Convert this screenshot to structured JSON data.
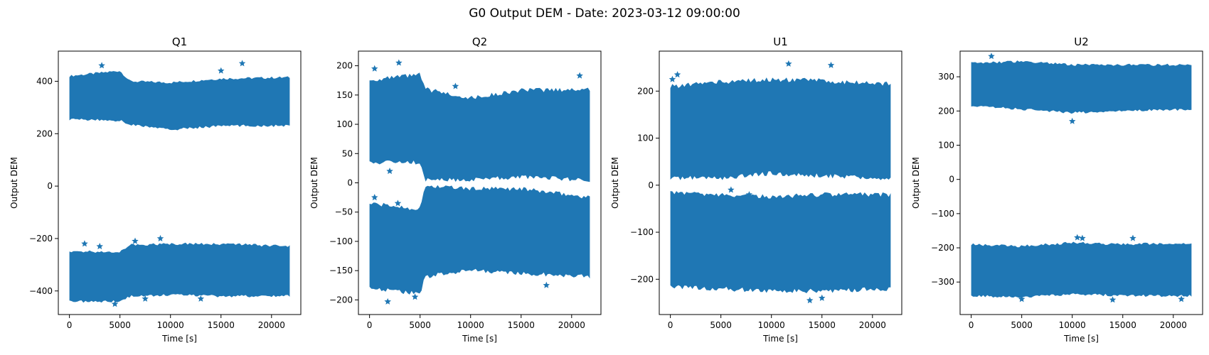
{
  "figure": {
    "suptitle": "G0 Output DEM - Date: 2023-03-12 09:00:00",
    "color": "#1f77b4"
  },
  "chart_data": [
    {
      "type": "scatter",
      "marker": "star",
      "title": "Q1",
      "xlabel": "Time [s]",
      "ylabel": "Output DEM",
      "xlim": [
        -1100,
        22900
      ],
      "ylim": [
        -490,
        515
      ],
      "xticks": [
        0,
        5000,
        10000,
        15000,
        20000
      ],
      "yticks": [
        -400,
        -200,
        0,
        200,
        400
      ],
      "bands": [
        {
          "x": [
            0,
            5000,
            6000,
            10000,
            15000,
            21800
          ],
          "upper": [
            420,
            440,
            400,
            395,
            410,
            415
          ],
          "lower": [
            255,
            250,
            235,
            215,
            230,
            230
          ]
        },
        {
          "x": [
            0,
            5000,
            6000,
            10000,
            15000,
            21800
          ],
          "upper": [
            -250,
            -250,
            -225,
            -220,
            -220,
            -230
          ],
          "lower": [
            -440,
            -440,
            -420,
            -415,
            -420,
            -420
          ]
        }
      ],
      "outliers": [
        [
          17100,
          468
        ],
        [
          3200,
          460
        ],
        [
          15000,
          440
        ],
        [
          9000,
          -200
        ],
        [
          1500,
          -220
        ],
        [
          3000,
          -230
        ],
        [
          6500,
          -210
        ],
        [
          7500,
          -430
        ],
        [
          4500,
          -450
        ],
        [
          13000,
          -430
        ]
      ]
    },
    {
      "type": "scatter",
      "marker": "star",
      "title": "Q2",
      "xlabel": "Time [s]",
      "ylabel": "Output DEM",
      "xlim": [
        -1100,
        22900
      ],
      "ylim": [
        -225,
        225
      ],
      "xticks": [
        0,
        5000,
        10000,
        15000,
        20000
      ],
      "yticks": [
        -200,
        -150,
        -100,
        -50,
        0,
        50,
        100,
        150,
        200
      ],
      "bands": [
        {
          "x": [
            0,
            5000,
            5500,
            10000,
            15000,
            21800
          ],
          "upper": [
            175,
            185,
            160,
            145,
            158,
            160
          ],
          "lower": [
            35,
            35,
            5,
            5,
            10,
            5
          ]
        },
        {
          "x": [
            0,
            5000,
            5500,
            10000,
            15000,
            21800
          ],
          "upper": [
            -35,
            -45,
            -5,
            -10,
            -10,
            -25
          ],
          "lower": [
            -180,
            -190,
            -160,
            -150,
            -155,
            -160
          ]
        }
      ],
      "outliers": [
        [
          2900,
          205
        ],
        [
          500,
          195
        ],
        [
          20800,
          183
        ],
        [
          8500,
          165
        ],
        [
          2000,
          20
        ],
        [
          1800,
          -203
        ],
        [
          500,
          -25
        ],
        [
          2800,
          -35
        ],
        [
          17500,
          -175
        ],
        [
          4500,
          -195
        ]
      ]
    },
    {
      "type": "scatter",
      "marker": "star",
      "title": "U1",
      "xlabel": "Time [s]",
      "ylabel": "Output DEM",
      "xlim": [
        -1100,
        22900
      ],
      "ylim": [
        -275,
        285
      ],
      "xticks": [
        0,
        5000,
        10000,
        15000,
        20000
      ],
      "yticks": [
        -200,
        -100,
        0,
        100,
        200
      ],
      "bands": [
        {
          "x": [
            0,
            5000,
            10000,
            15000,
            21800
          ],
          "upper": [
            210,
            220,
            225,
            222,
            215
          ],
          "lower": [
            15,
            15,
            25,
            20,
            15
          ]
        },
        {
          "x": [
            0,
            5000,
            10000,
            15000,
            21800
          ],
          "upper": [
            -15,
            -20,
            -25,
            -20,
            -20
          ],
          "lower": [
            -215,
            -220,
            -225,
            -225,
            -220
          ]
        }
      ],
      "outliers": [
        [
          11700,
          258
        ],
        [
          15900,
          255
        ],
        [
          200,
          225
        ],
        [
          700,
          235
        ],
        [
          6000,
          -10
        ],
        [
          7800,
          -20
        ],
        [
          13800,
          -245
        ],
        [
          15000,
          -240
        ],
        [
          4500,
          -215
        ]
      ]
    },
    {
      "type": "scatter",
      "marker": "star",
      "title": "U2",
      "xlabel": "Time [s]",
      "ylabel": "Output DEM",
      "xlim": [
        -1100,
        22900
      ],
      "ylim": [
        -395,
        375
      ],
      "xticks": [
        0,
        5000,
        10000,
        15000,
        20000
      ],
      "yticks": [
        -300,
        -200,
        -100,
        0,
        100,
        200,
        300
      ],
      "bands": [
        {
          "x": [
            0,
            5000,
            10000,
            15000,
            21800
          ],
          "upper": [
            340,
            345,
            335,
            335,
            335
          ],
          "lower": [
            215,
            205,
            195,
            200,
            205
          ]
        },
        {
          "x": [
            0,
            5000,
            10000,
            15000,
            21800
          ],
          "upper": [
            -190,
            -195,
            -185,
            -190,
            -185
          ],
          "lower": [
            -340,
            -345,
            -335,
            -340,
            -340
          ]
        }
      ],
      "outliers": [
        [
          2000,
          360
        ],
        [
          10000,
          170
        ],
        [
          10500,
          -170
        ],
        [
          11000,
          -172
        ],
        [
          16000,
          -172
        ],
        [
          5000,
          -350
        ],
        [
          14000,
          -352
        ],
        [
          20800,
          -350
        ]
      ]
    }
  ]
}
